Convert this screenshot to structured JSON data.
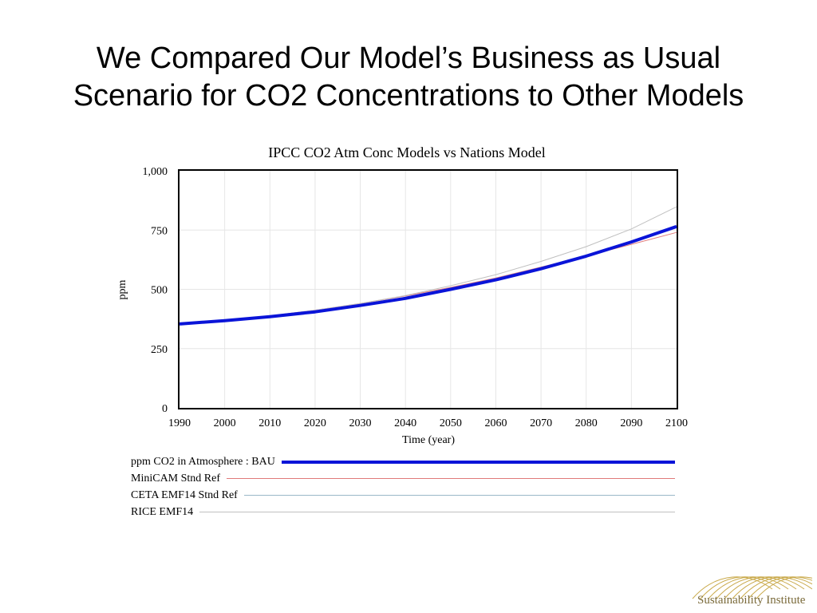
{
  "slide": {
    "title_line1": "We Compared Our Model’s Business as Usual",
    "title_line2": "Scenario for CO2 Concentrations to Other Models"
  },
  "chart_data": {
    "type": "line",
    "title": "IPCC CO2 Atm Conc Models vs Nations Model",
    "xlabel": "Time (year)",
    "ylabel": "ppm",
    "xlim": [
      1990,
      2100
    ],
    "ylim": [
      0,
      1000
    ],
    "x_ticks": [
      "1990",
      "2000",
      "2010",
      "2020",
      "2030",
      "2040",
      "2050",
      "2060",
      "2070",
      "2080",
      "2090",
      "2100"
    ],
    "y_ticks": [
      "0",
      "250",
      "500",
      "750",
      "1,000"
    ],
    "grid": true,
    "legend_position": "below",
    "x": [
      1990,
      2000,
      2010,
      2020,
      2030,
      2040,
      2050,
      2060,
      2070,
      2080,
      2090,
      2100
    ],
    "series": [
      {
        "name": "ppm CO2 in Atmosphere : BAU",
        "color": "#0a14d8",
        "width": "thick",
        "values": [
          354,
          368,
          385,
          405,
          432,
          462,
          500,
          540,
          587,
          640,
          700,
          765
        ]
      },
      {
        "name": "MiniCAM Stnd Ref",
        "color": "#e07a7a",
        "width": "thin",
        "values": [
          354,
          369,
          388,
          412,
          440,
          472,
          508,
          548,
          594,
          640,
          690,
          740
        ]
      },
      {
        "name": "CETA EMF14 Stnd Ref",
        "color": "#9ab8c8",
        "width": "thin",
        "values": [
          354,
          368,
          385,
          405,
          432,
          464,
          504,
          545,
          592,
          645,
          700,
          762
        ]
      },
      {
        "name": "RICE EMF14",
        "color": "#c0c0c0",
        "width": "thin",
        "values": [
          354,
          369,
          388,
          412,
          440,
          474,
          515,
          562,
          618,
          680,
          755,
          848
        ]
      }
    ]
  },
  "logo": {
    "text": "Sustainability Institute",
    "color": "#c9a94a"
  }
}
